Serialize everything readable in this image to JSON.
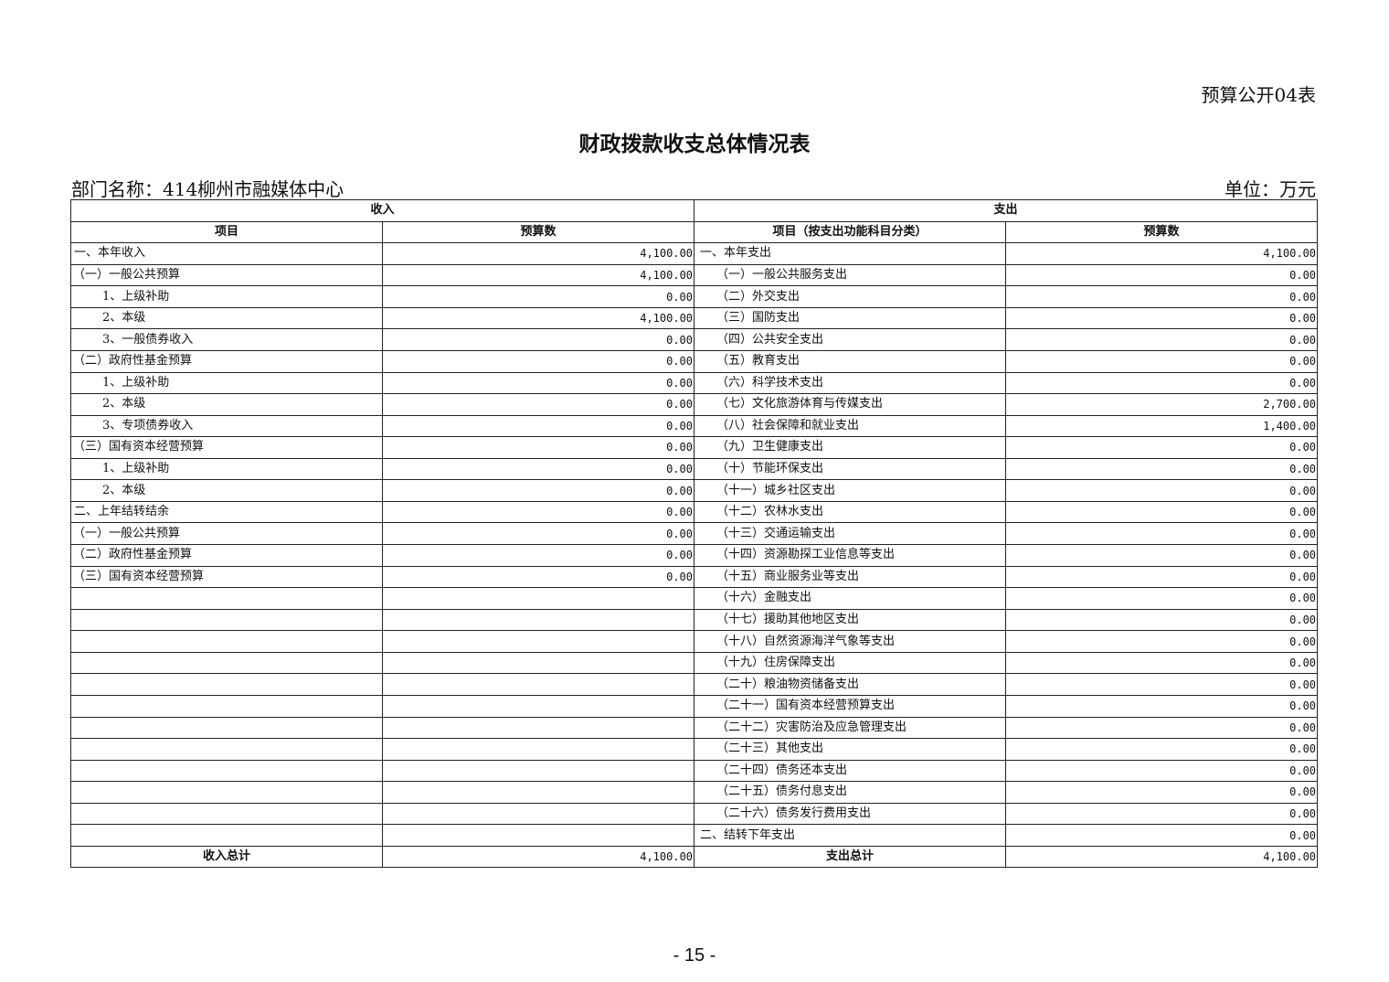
{
  "form_number": "预算公开04表",
  "title": "财政拨款收支总体情况表",
  "department": "部门名称：414柳州市融媒体中心",
  "unit": "单位：万元",
  "table": {
    "income_header": "收入",
    "expense_header": "支出",
    "col_income_item": "项目",
    "col_income_amount": "预算数",
    "col_expense_item": "项目（按支出功能科目分类）",
    "col_expense_amount": "预算数",
    "income_rows": [
      {
        "label": "一、本年收入",
        "amount": "4,100.00",
        "level": 1
      },
      {
        "label": "（一）一般公共预算",
        "amount": "4,100.00",
        "level": 2
      },
      {
        "label": "1、上级补助",
        "amount": "0.00",
        "level": 3
      },
      {
        "label": "2、本级",
        "amount": "4,100.00",
        "level": 3
      },
      {
        "label": "3、一般债券收入",
        "amount": "0.00",
        "level": 3
      },
      {
        "label": "（二）政府性基金预算",
        "amount": "0.00",
        "level": 2
      },
      {
        "label": "1、上级补助",
        "amount": "0.00",
        "level": 3
      },
      {
        "label": "2、本级",
        "amount": "0.00",
        "level": 3
      },
      {
        "label": "3、专项债券收入",
        "amount": "0.00",
        "level": 3
      },
      {
        "label": "（三）国有资本经营预算",
        "amount": "0.00",
        "level": 2
      },
      {
        "label": "1、上级补助",
        "amount": "0.00",
        "level": 3
      },
      {
        "label": "2、本级",
        "amount": "0.00",
        "level": 3
      },
      {
        "label": "二、上年结转结余",
        "amount": "0.00",
        "level": 1
      },
      {
        "label": "（一）一般公共预算",
        "amount": "0.00",
        "level": 2
      },
      {
        "label": "（二）政府性基金预算",
        "amount": "0.00",
        "level": 2
      },
      {
        "label": "（三）国有资本经营预算",
        "amount": "0.00",
        "level": 2
      }
    ],
    "expense_rows": [
      {
        "label": "一、本年支出",
        "amount": "4,100.00",
        "level": 1
      },
      {
        "label": "（一）一般公共服务支出",
        "amount": "0.00",
        "level": 2
      },
      {
        "label": "（二）外交支出",
        "amount": "0.00",
        "level": 2
      },
      {
        "label": "（三）国防支出",
        "amount": "0.00",
        "level": 2
      },
      {
        "label": "（四）公共安全支出",
        "amount": "0.00",
        "level": 2
      },
      {
        "label": "（五）教育支出",
        "amount": "0.00",
        "level": 2
      },
      {
        "label": "（六）科学技术支出",
        "amount": "0.00",
        "level": 2
      },
      {
        "label": "（七）文化旅游体育与传媒支出",
        "amount": "2,700.00",
        "level": 2
      },
      {
        "label": "（八）社会保障和就业支出",
        "amount": "1,400.00",
        "level": 2
      },
      {
        "label": "（九）卫生健康支出",
        "amount": "0.00",
        "level": 2
      },
      {
        "label": "（十）节能环保支出",
        "amount": "0.00",
        "level": 2
      },
      {
        "label": "（十一）城乡社区支出",
        "amount": "0.00",
        "level": 2
      },
      {
        "label": "（十二）农林水支出",
        "amount": "0.00",
        "level": 2
      },
      {
        "label": "（十三）交通运输支出",
        "amount": "0.00",
        "level": 2
      },
      {
        "label": "（十四）资源勘探工业信息等支出",
        "amount": "0.00",
        "level": 2
      },
      {
        "label": "（十五）商业服务业等支出",
        "amount": "0.00",
        "level": 2
      },
      {
        "label": "（十六）金融支出",
        "amount": "0.00",
        "level": 2
      },
      {
        "label": "（十七）援助其他地区支出",
        "amount": "0.00",
        "level": 2
      },
      {
        "label": "（十八）自然资源海洋气象等支出",
        "amount": "0.00",
        "level": 2
      },
      {
        "label": "（十九）住房保障支出",
        "amount": "0.00",
        "level": 2
      },
      {
        "label": "（二十）粮油物资储备支出",
        "amount": "0.00",
        "level": 2
      },
      {
        "label": "（二十一）国有资本经营预算支出",
        "amount": "0.00",
        "level": 2
      },
      {
        "label": "（二十二）灾害防治及应急管理支出",
        "amount": "0.00",
        "level": 2
      },
      {
        "label": "（二十三）其他支出",
        "amount": "0.00",
        "level": 2
      },
      {
        "label": "（二十四）债务还本支出",
        "amount": "0.00",
        "level": 2
      },
      {
        "label": "（二十五）债务付息支出",
        "amount": "0.00",
        "level": 2
      },
      {
        "label": "（二十六）债务发行费用支出",
        "amount": "0.00",
        "level": 2
      },
      {
        "label": "二、结转下年支出",
        "amount": "0.00",
        "level": 1
      }
    ],
    "income_total_label": "收入总计",
    "income_total": "4,100.00",
    "expense_total_label": "支出总计",
    "expense_total": "4,100.00"
  },
  "page_number": "- 15 -"
}
